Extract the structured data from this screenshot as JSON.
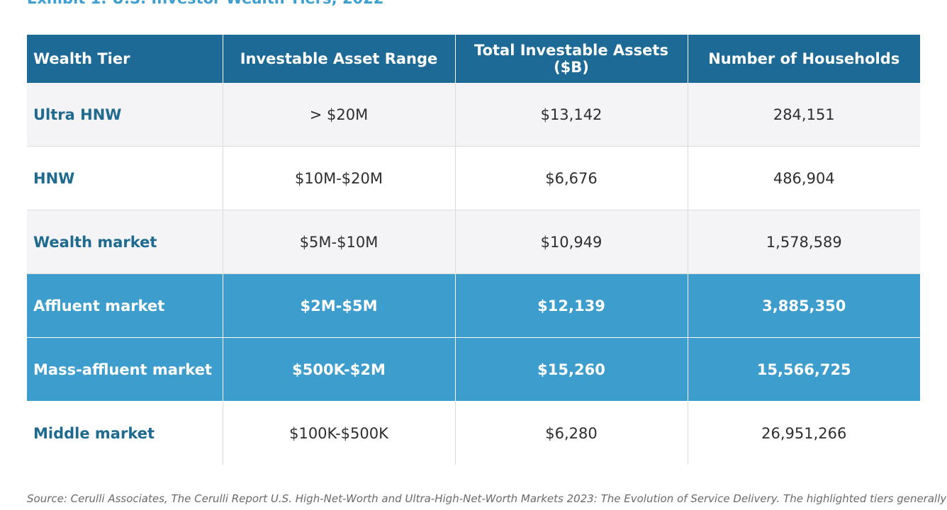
{
  "title": "Exhibit 1: U.S. Investor Wealth Tiers, 2022",
  "table": {
    "headers": [
      "Wealth Tier",
      "Investable Asset Range",
      "Total Investable Assets ($B)",
      "Number of Households"
    ],
    "rows": [
      {
        "tier": "Ultra HNW",
        "range": "> $20M",
        "assets": "$13,142",
        "households": "284,151",
        "highlighted": false
      },
      {
        "tier": "HNW",
        "range": "$10M-$20M",
        "assets": "$6,676",
        "households": "486,904",
        "highlighted": false
      },
      {
        "tier": "Wealth market",
        "range": "$5M-$10M",
        "assets": "$10,949",
        "households": "1,578,589",
        "highlighted": false
      },
      {
        "tier": "Affluent market",
        "range": "$2M-$5M",
        "assets": "$12,139",
        "households": "3,885,350",
        "highlighted": true
      },
      {
        "tier": "Mass-affluent market",
        "range": "$500K-$2M",
        "assets": "$15,260",
        "households": "15,566,725",
        "highlighted": true
      },
      {
        "tier": "Middle market",
        "range": "$100K-$500K",
        "assets": "$6,280",
        "households": "26,951,266",
        "highlighted": false
      }
    ]
  },
  "source": "Source: Cerulli Associates, The Cerulli Report U.S. High-Net-Worth and Ultra-High-Net-Worth Markets 2023: The Evolution of Service Delivery. The highlighted tiers generally",
  "colors": {
    "header": "#1c6a95",
    "highlight": "#3d9dcd",
    "tier_text": "#1f6a8f",
    "title": "#3f9fcf"
  }
}
